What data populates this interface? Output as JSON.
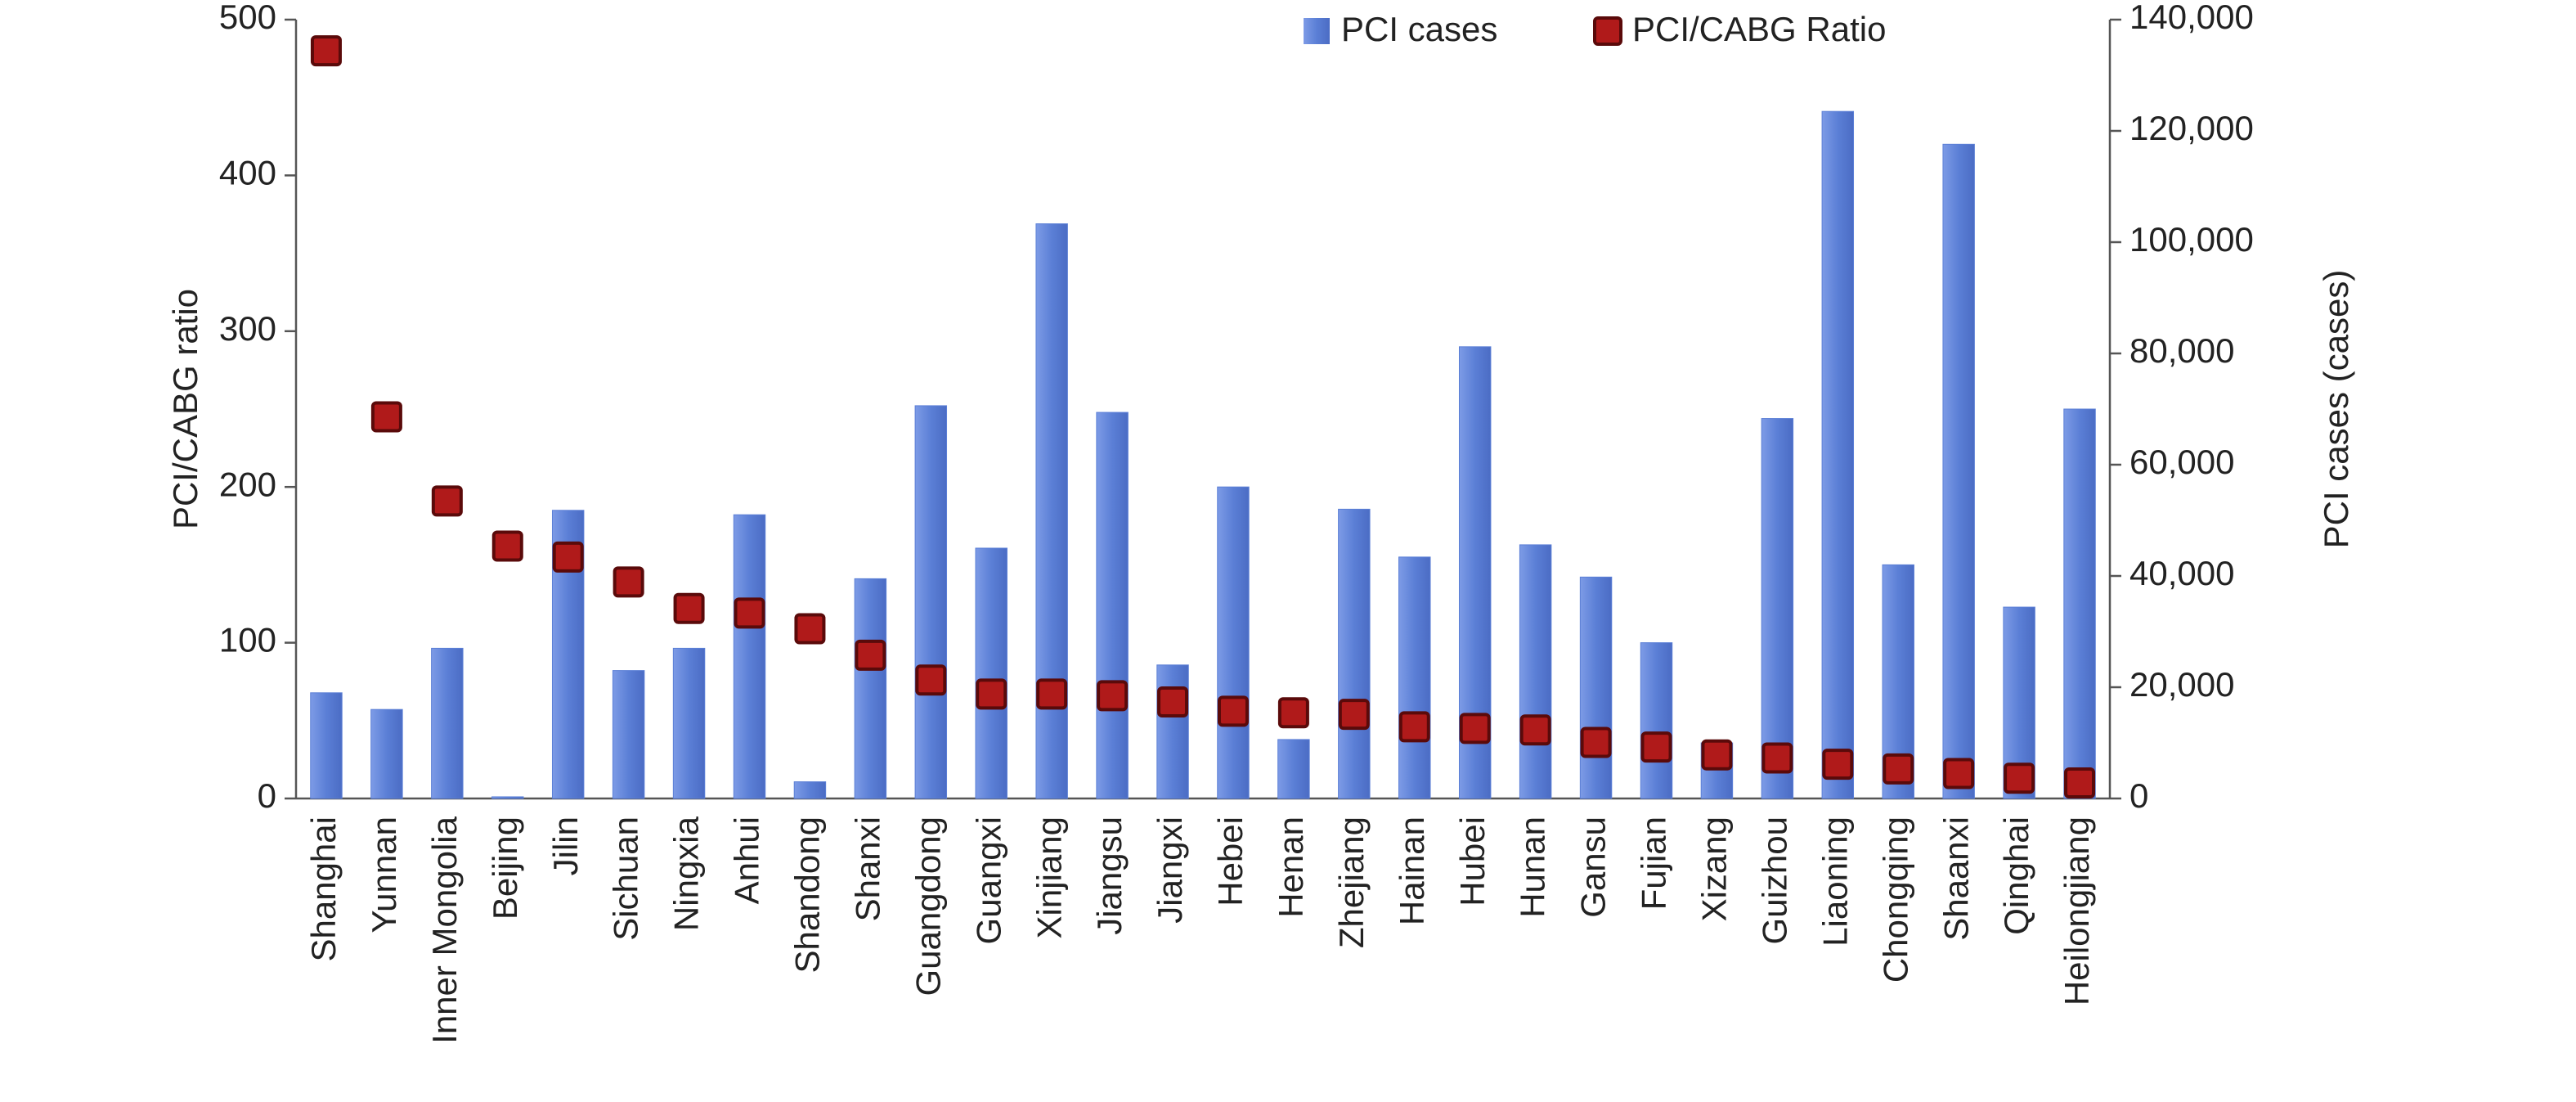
{
  "chart_data": {
    "type": "bar",
    "categories": [
      "Shanghai",
      "Yunnan",
      "Inner Mongolia",
      "Beijing",
      "Jilin",
      "Sichuan",
      "Ningxia",
      "Anhui",
      "Shandong",
      "Shanxi",
      "Guangdong",
      "Guangxi",
      "Xinjiang",
      "Jiangsu",
      "Jiangxi",
      "Hebei",
      "Henan",
      "Zhejiang",
      "Hainan",
      "Hubei",
      "Hunan",
      "Gansu",
      "Fujian",
      "Xizang",
      "Guizhou",
      "Liaoning",
      "Chongqing",
      "Shaanxi",
      "Qinghai",
      "Heilongjiang"
    ],
    "series": [
      {
        "name": "PCI cases",
        "type": "bar",
        "axis": "y2",
        "color": "#5b7fd6",
        "values": [
          19000,
          16000,
          27000,
          300,
          51800,
          23000,
          27000,
          51000,
          3000,
          39500,
          70600,
          45000,
          103300,
          69400,
          24000,
          56000,
          10600,
          52000,
          43400,
          81200,
          45600,
          39800,
          28000,
          10000,
          68300,
          123500,
          42000,
          117600,
          34400,
          70000
        ]
      },
      {
        "name": "PCI/CABG Ratio",
        "type": "scatter",
        "axis": "y",
        "color": "#b01a1a",
        "values": [
          480,
          245,
          191,
          162,
          155,
          139,
          122,
          119,
          109,
          92,
          76,
          67,
          67,
          66,
          62,
          56,
          55,
          54,
          46,
          45,
          44,
          36,
          33,
          28,
          26,
          22,
          19,
          16,
          13,
          10
        ]
      }
    ],
    "ylabel": "PCI/CABG ratio",
    "y2label": "PCI cases (cases)",
    "ylim": [
      0,
      500
    ],
    "yticks": [
      0,
      100,
      200,
      300,
      400,
      500
    ],
    "y2lim": [
      0,
      140000
    ],
    "y2ticks": [
      0,
      {
        "value": 20000,
        "label": "20,000"
      },
      {
        "value": 40000,
        "label": "40,000"
      },
      {
        "value": 60000,
        "label": "60,000"
      },
      {
        "value": 80000,
        "label": "80,000"
      },
      {
        "value": 100000,
        "label": "100,000"
      },
      {
        "value": 120000,
        "label": "120,000"
      },
      {
        "value": 140000,
        "label": "140,000"
      }
    ],
    "grid": false,
    "legend": "top"
  }
}
